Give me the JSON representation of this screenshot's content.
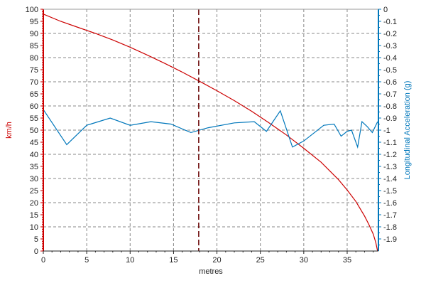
{
  "chart_data": {
    "type": "line",
    "xlabel": "metres",
    "y_left_label": "km/h",
    "y_right_label": "Longitudinal Acceleration (g)",
    "xlim": [
      0,
      38.6
    ],
    "ylim_left": [
      0,
      100
    ],
    "ylim_right": [
      -2.0,
      0
    ],
    "x_ticks": [
      0,
      5,
      10,
      15,
      20,
      25,
      30,
      35
    ],
    "y_left_ticks": [
      0,
      5,
      10,
      15,
      20,
      25,
      30,
      35,
      40,
      45,
      50,
      55,
      60,
      65,
      70,
      75,
      80,
      85,
      90,
      95,
      100
    ],
    "y_right_ticks": [
      0,
      -0.1,
      -0.2,
      -0.3,
      -0.4,
      -0.5,
      -0.6,
      -0.7,
      -0.8,
      -0.9,
      -1,
      -1.1,
      -1.2,
      -1.3,
      -1.4,
      -1.5,
      -1.6,
      -1.7,
      -1.8,
      -1.9
    ],
    "grid": true,
    "marker_x": 17.9,
    "colors": {
      "speed": "#cc0000",
      "accel": "#0077bb",
      "marker": "#660000",
      "grid": "#888888"
    },
    "series": [
      {
        "axis": "left",
        "x": [
          0,
          2,
          4,
          6,
          8,
          10,
          12,
          14,
          16,
          18,
          20,
          22,
          24,
          26,
          28,
          30,
          32,
          34,
          35,
          36,
          37,
          37.5,
          38,
          38.3,
          38.5
        ],
        "values": [
          98,
          95,
          92.5,
          90,
          87.3,
          84.3,
          81,
          77.6,
          74,
          70.2,
          66.3,
          62.2,
          57.8,
          53,
          48,
          42.5,
          36.7,
          29.5,
          25.2,
          20.5,
          14.5,
          11,
          7,
          3.5,
          0
        ]
      },
      {
        "axis": "right",
        "x": [
          0,
          2.7,
          5,
          7.7,
          10,
          12.4,
          14.7,
          17,
          19,
          22,
          24.3,
          25.7,
          27.3,
          28.7,
          30,
          32.3,
          33.5,
          34.3,
          35,
          35.5,
          36.2,
          36.7,
          37.3,
          37.9,
          38.5
        ],
        "values": [
          -0.83,
          -1.12,
          -0.96,
          -0.9,
          -0.96,
          -0.93,
          -0.95,
          -1.02,
          -0.98,
          -0.94,
          -0.93,
          -1.01,
          -0.84,
          -1.14,
          -1.09,
          -0.96,
          -0.95,
          -1.05,
          -1.01,
          -1.0,
          -1.14,
          -0.93,
          -0.97,
          -1.02,
          -0.93
        ]
      }
    ]
  }
}
